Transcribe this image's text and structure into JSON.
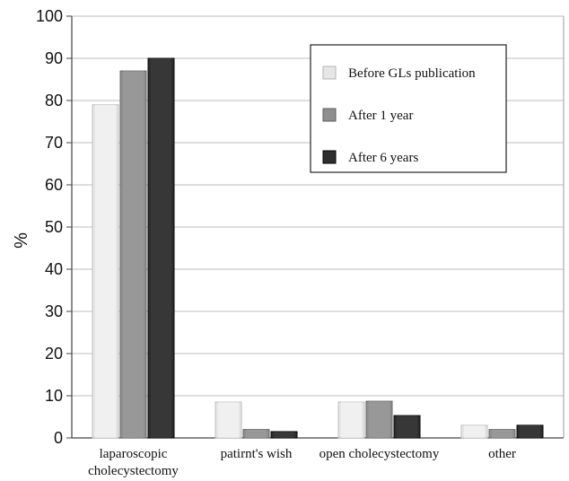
{
  "chart_data": {
    "type": "bar",
    "ylabel": "%",
    "ylim": [
      0,
      100
    ],
    "yticks": [
      0,
      10,
      20,
      30,
      40,
      50,
      60,
      70,
      80,
      90,
      100
    ],
    "grid": true,
    "legend_position": "top-right",
    "categories": [
      [
        "laparoscopic",
        "cholecystectomy"
      ],
      [
        "patirnt's wish"
      ],
      [
        "open cholecystectomy"
      ],
      [
        "other"
      ]
    ],
    "series": [
      {
        "name": "Before GLs publication",
        "values": [
          79,
          8.5,
          8.5,
          3
        ],
        "color": "#e6e6e6"
      },
      {
        "name": "After 1 year",
        "values": [
          87,
          2,
          8.7,
          2
        ],
        "color": "#8f8f8f"
      },
      {
        "name": "After 6 years",
        "values": [
          90,
          1.5,
          5.3,
          3
        ],
        "color": "#2e2e2e"
      }
    ]
  }
}
